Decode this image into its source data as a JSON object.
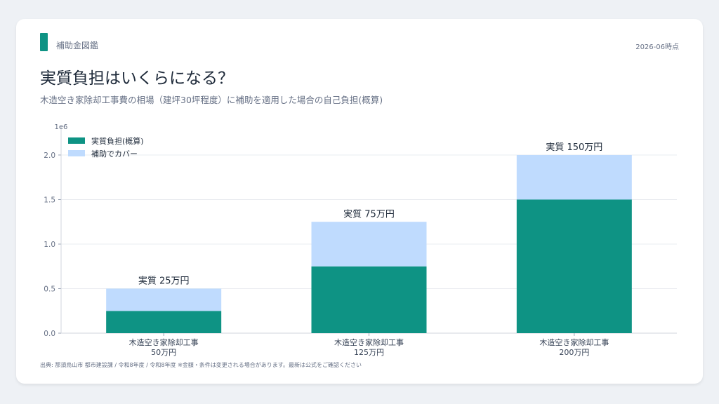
{
  "header": {
    "brand": "補助金図鑑",
    "as_of": "2026-06時点",
    "title": "実質負担はいくらになる？",
    "subtitle": "木造空き家除却工事費の相場（建坪30坪程度）に補助を適用した場合の自己負担(概算)"
  },
  "footer": {
    "source": "出典: 那須烏山市 都市建設課 / 令和8年度 / 令和8年度 ※金額・条件は変更される場合があります。最新は公式をご確認ください"
  },
  "colors": {
    "accent": "#0e9384",
    "self_burden": "#0e9384",
    "subsidy": "#bfdbfe"
  },
  "chart_data": {
    "type": "bar",
    "stacked": true,
    "categories": [
      "木造空き家除却工事\n50万円",
      "木造空き家除却工事\n125万円",
      "木造空き家除却工事\n200万円"
    ],
    "series": [
      {
        "name": "実質負担(概算)",
        "values": [
          250000,
          750000,
          1500000
        ]
      },
      {
        "name": "補助でカバー",
        "values": [
          250000,
          500000,
          500000
        ]
      }
    ],
    "data_labels": [
      "実質 25万円",
      "実質 75万円",
      "実質 150万円"
    ],
    "ylim": [
      0,
      2000000
    ],
    "yticks": [
      "0.0",
      "0.5",
      "1.0",
      "1.5",
      "2.0"
    ],
    "y_multiplier": "1e6",
    "legend": "top-left",
    "grid": true
  }
}
